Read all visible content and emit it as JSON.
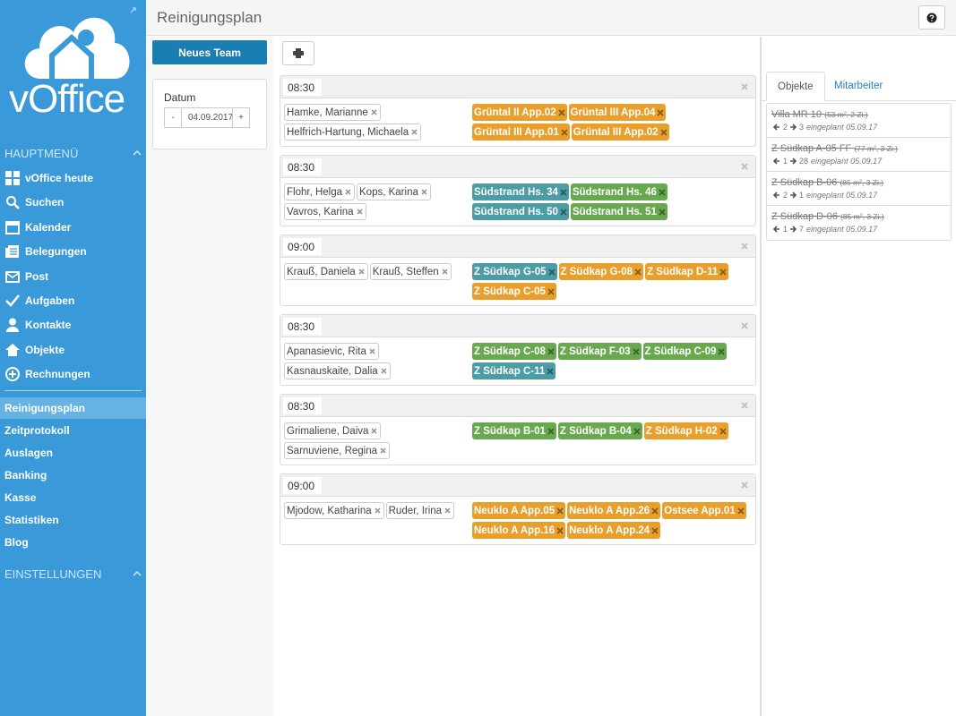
{
  "sidebar": {
    "brand": "vOffice",
    "main_menu": "HAUPTMENÜ",
    "menu": [
      "vOffice heute",
      "Suchen",
      "Kalender",
      "Belegungen",
      "Post",
      "Aufgaben",
      "Kontakte",
      "Objekte",
      "Rechnungen"
    ],
    "submenu": [
      "Reinigungsplan",
      "Zeitprotokoll",
      "Auslagen",
      "Banking",
      "Kasse",
      "Statistiken",
      "Blog"
    ],
    "active": 0,
    "settings": "EINSTELLUNGEN"
  },
  "header": {
    "title": "Reinigungsplan"
  },
  "toolbar": {
    "new_team": "Neues Team"
  },
  "date_panel": {
    "label": "Datum",
    "minus": "-",
    "value": "04.09.2017",
    "plus": "+"
  },
  "teams": [
    {
      "time": "08:30",
      "members": [
        "Hamke, Marianne",
        "Helfrich-Hartung, Michaela"
      ],
      "objects": [
        {
          "name": "Grüntal II App.02",
          "color": "#e99f2c"
        },
        {
          "name": "Grüntal III App.04",
          "color": "#e99f2c"
        },
        {
          "name": "Grüntal III App.01",
          "color": "#e99f2c"
        },
        {
          "name": "Grüntal III App.02",
          "color": "#e99f2c"
        }
      ]
    },
    {
      "time": "08:30",
      "members": [
        "Flohr, Helga",
        "Kops, Karina",
        "Vavros, Karina"
      ],
      "objects": [
        {
          "name": "Südstrand Hs. 34",
          "color": "#4b9ca5"
        },
        {
          "name": "Südstrand Hs. 46",
          "color": "#68a94f"
        },
        {
          "name": "Südstrand Hs. 50",
          "color": "#4b9ca5"
        },
        {
          "name": "Südstrand Hs. 51",
          "color": "#68a94f"
        }
      ]
    },
    {
      "time": "09:00",
      "members": [
        "Krauß, Daniela",
        "Krauß, Steffen"
      ],
      "objects": [
        {
          "name": "Z Südkap G-05",
          "color": "#4b9ca5"
        },
        {
          "name": "Z Südkap G-08",
          "color": "#e99f2c"
        },
        {
          "name": "Z Südkap D-11",
          "color": "#e99f2c"
        },
        {
          "name": "Z Südkap C-05",
          "color": "#e99f2c"
        }
      ]
    },
    {
      "time": "08:30",
      "members": [
        "Apanasievic, Rita",
        "Kasnauskaite, Dalia"
      ],
      "objects": [
        {
          "name": "Z Südkap C-08",
          "color": "#68a94f"
        },
        {
          "name": "Z Südkap F-03",
          "color": "#68a94f"
        },
        {
          "name": "Z Südkap C-09",
          "color": "#68a94f"
        },
        {
          "name": "Z Südkap C-11",
          "color": "#4b9ca5"
        }
      ]
    },
    {
      "time": "08:30",
      "members": [
        "Grimaliene, Daiva",
        "Sarnuviene, Regina"
      ],
      "objects": [
        {
          "name": "Z Südkap B-01",
          "color": "#68a94f"
        },
        {
          "name": "Z Südkap B-04",
          "color": "#68a94f"
        },
        {
          "name": "Z Südkap H-02",
          "color": "#e99f2c"
        }
      ]
    },
    {
      "time": "09:00",
      "members": [
        "Mjodow, Katharina",
        "Ruder, Irina"
      ],
      "objects": [
        {
          "name": "Neuklo A App.05",
          "color": "#e99f2c"
        },
        {
          "name": "Neuklo A App.26",
          "color": "#e99f2c"
        },
        {
          "name": "Ostsee App.01",
          "color": "#e99f2c"
        },
        {
          "name": "Neuklo A App.16",
          "color": "#e99f2c"
        },
        {
          "name": "Neuklo A App.24",
          "color": "#e99f2c"
        }
      ]
    }
  ],
  "right_panel": {
    "tabs": [
      "Objekte",
      "Mitarbeiter"
    ],
    "items": [
      {
        "name": "Villa MR 10",
        "details": "(53 m², 2 Zi.)",
        "from": 2,
        "to": 3,
        "note": "eingeplant 05.09.17"
      },
      {
        "name": "Z Südkap A-05 FF",
        "details": "(77 m², 3 Zi.)",
        "from": 1,
        "to": 28,
        "note": "eingeplant 05.09.17"
      },
      {
        "name": "Z Südkap B-06",
        "details": "(85 m², 3 Zi.)",
        "from": 2,
        "to": 1,
        "note": "eingeplant 05.09.17"
      },
      {
        "name": "Z Südkap D-06",
        "details": "(85 m², 3 Zi.)",
        "from": 1,
        "to": 7,
        "note": "eingeplant 05.09.17"
      }
    ]
  }
}
